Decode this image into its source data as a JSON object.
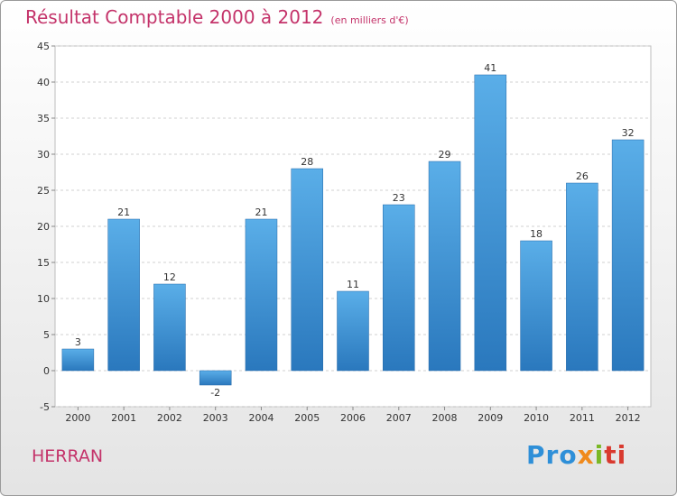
{
  "header": {
    "title": "Résultat Comptable 2000 à 2012",
    "subtitle": "(en milliers d'€)"
  },
  "footer": {
    "commune": "HERRAN",
    "logo_parts": [
      "Pro",
      "x",
      "i",
      "ti"
    ]
  },
  "colors": {
    "title": "#c4336a",
    "bar_top": "#5aaee8",
    "bar_bottom": "#2a78bd",
    "grid": "#d0d0d0"
  },
  "chart_data": {
    "type": "bar",
    "title": "Résultat Comptable 2000 à 2012",
    "subtitle": "(en milliers d'€)",
    "xlabel": "",
    "ylabel": "",
    "categories": [
      "2000",
      "2001",
      "2002",
      "2003",
      "2004",
      "2005",
      "2006",
      "2007",
      "2008",
      "2009",
      "2010",
      "2011",
      "2012"
    ],
    "values": [
      3,
      21,
      12,
      -2,
      21,
      28,
      11,
      23,
      29,
      41,
      18,
      26,
      32
    ],
    "ylim": [
      -5,
      45
    ],
    "yticks": [
      -5,
      0,
      5,
      10,
      15,
      20,
      25,
      30,
      35,
      40,
      45
    ],
    "grid": true,
    "legend": "none"
  }
}
